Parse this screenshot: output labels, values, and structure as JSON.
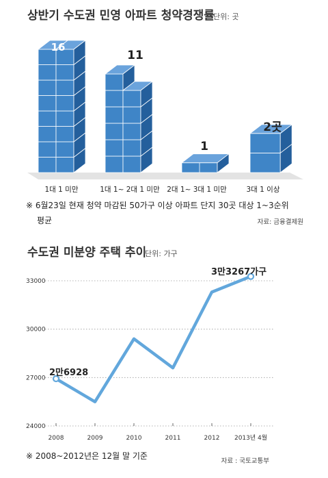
{
  "chart_data": [
    {
      "type": "bar",
      "title": "상반기 수도권 민영 아파트 청약경쟁률",
      "unit": "단위: 곳",
      "categories": [
        "1대 1 미만",
        "1대 1~ 2대 1 미만",
        "2대 1~ 3대 1 미만",
        "3대 1 이상"
      ],
      "values": [
        16,
        11,
        1,
        2
      ],
      "value_labels": [
        "16",
        "11",
        "1",
        "2곳"
      ],
      "note_line1": "※ 6월23일 현재 청약 마감된 50가구 이상 아파트 단지 30곳 대상 1~3순위",
      "note_line2": "평균",
      "source": "자료: 금융결제원",
      "colors": {
        "front": "#3f85c7",
        "side": "#245f9c",
        "top": "#6aa3dc",
        "floor": "#e3e3e3"
      }
    },
    {
      "type": "line",
      "title": "수도권 미분양 주택 추이",
      "unit": "단위: 가구",
      "x": [
        "2008",
        "2009",
        "2010",
        "2011",
        "2012",
        "2013년 4월"
      ],
      "y": [
        26928,
        25500,
        29400,
        27600,
        32300,
        33267
      ],
      "ylim": [
        24000,
        33000
      ],
      "yticks": [
        "24000",
        "27000",
        "30000",
        "33000"
      ],
      "start_label": "2만6928",
      "end_label": "3만3267가구",
      "note": "※ 2008~2012년은 12월 말 기준",
      "source": "자료 : 국토교통부",
      "colors": {
        "line": "#62a7dc",
        "grid": "#9a9a9a"
      }
    }
  ]
}
